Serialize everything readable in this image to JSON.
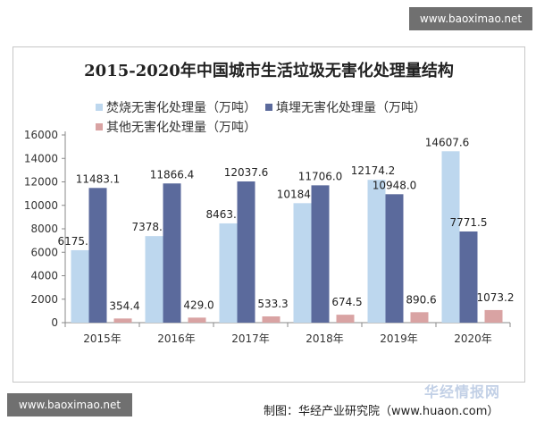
{
  "chart_data": {
    "type": "bar",
    "title": "2015-2020年中国城市生活垃圾无害化处理量结构",
    "categories": [
      "2015年",
      "2016年",
      "2017年",
      "2018年",
      "2019年",
      "2020年"
    ],
    "series": [
      {
        "name": "焚烧无害化处理量（万吨）",
        "values": [
          6175.5,
          7378.4,
          8463.3,
          10184.9,
          12174.2,
          14607.6
        ],
        "color": "#bdd7ee"
      },
      {
        "name": "填埋无害化处理量（万吨）",
        "values": [
          11483.1,
          11866.4,
          12037.6,
          11706.0,
          10948.0,
          7771.5
        ],
        "color": "#5b6a9c"
      },
      {
        "name": "其他无害化处理量（万吨）",
        "values": [
          354.4,
          429.0,
          533.3,
          674.5,
          890.6,
          1073.2
        ],
        "color": "#d9a3a3"
      }
    ],
    "value_labels": [
      [
        "6175.5",
        "7378.4",
        "8463.3",
        "10184.9",
        "12174.2",
        "14607.6"
      ],
      [
        "11483.1",
        "11866.4",
        "12037.6",
        "11706.0",
        "10948.0",
        "7771.5"
      ],
      [
        "354.4",
        "429.0",
        "533.3",
        "674.5",
        "890.6",
        "1073.2"
      ]
    ],
    "yticks": [
      "0",
      "2000",
      "4000",
      "6000",
      "8000",
      "10000",
      "12000",
      "14000",
      "16000"
    ],
    "ylim": [
      0,
      16000
    ],
    "grid": false,
    "legend_position": "top-left"
  },
  "source": "制图：华经产业研究院（www.huaon.com）",
  "watermark": "华经情报网",
  "badges": {
    "top": "www.baoximao.net",
    "bottom": "www.baoximao.net"
  }
}
